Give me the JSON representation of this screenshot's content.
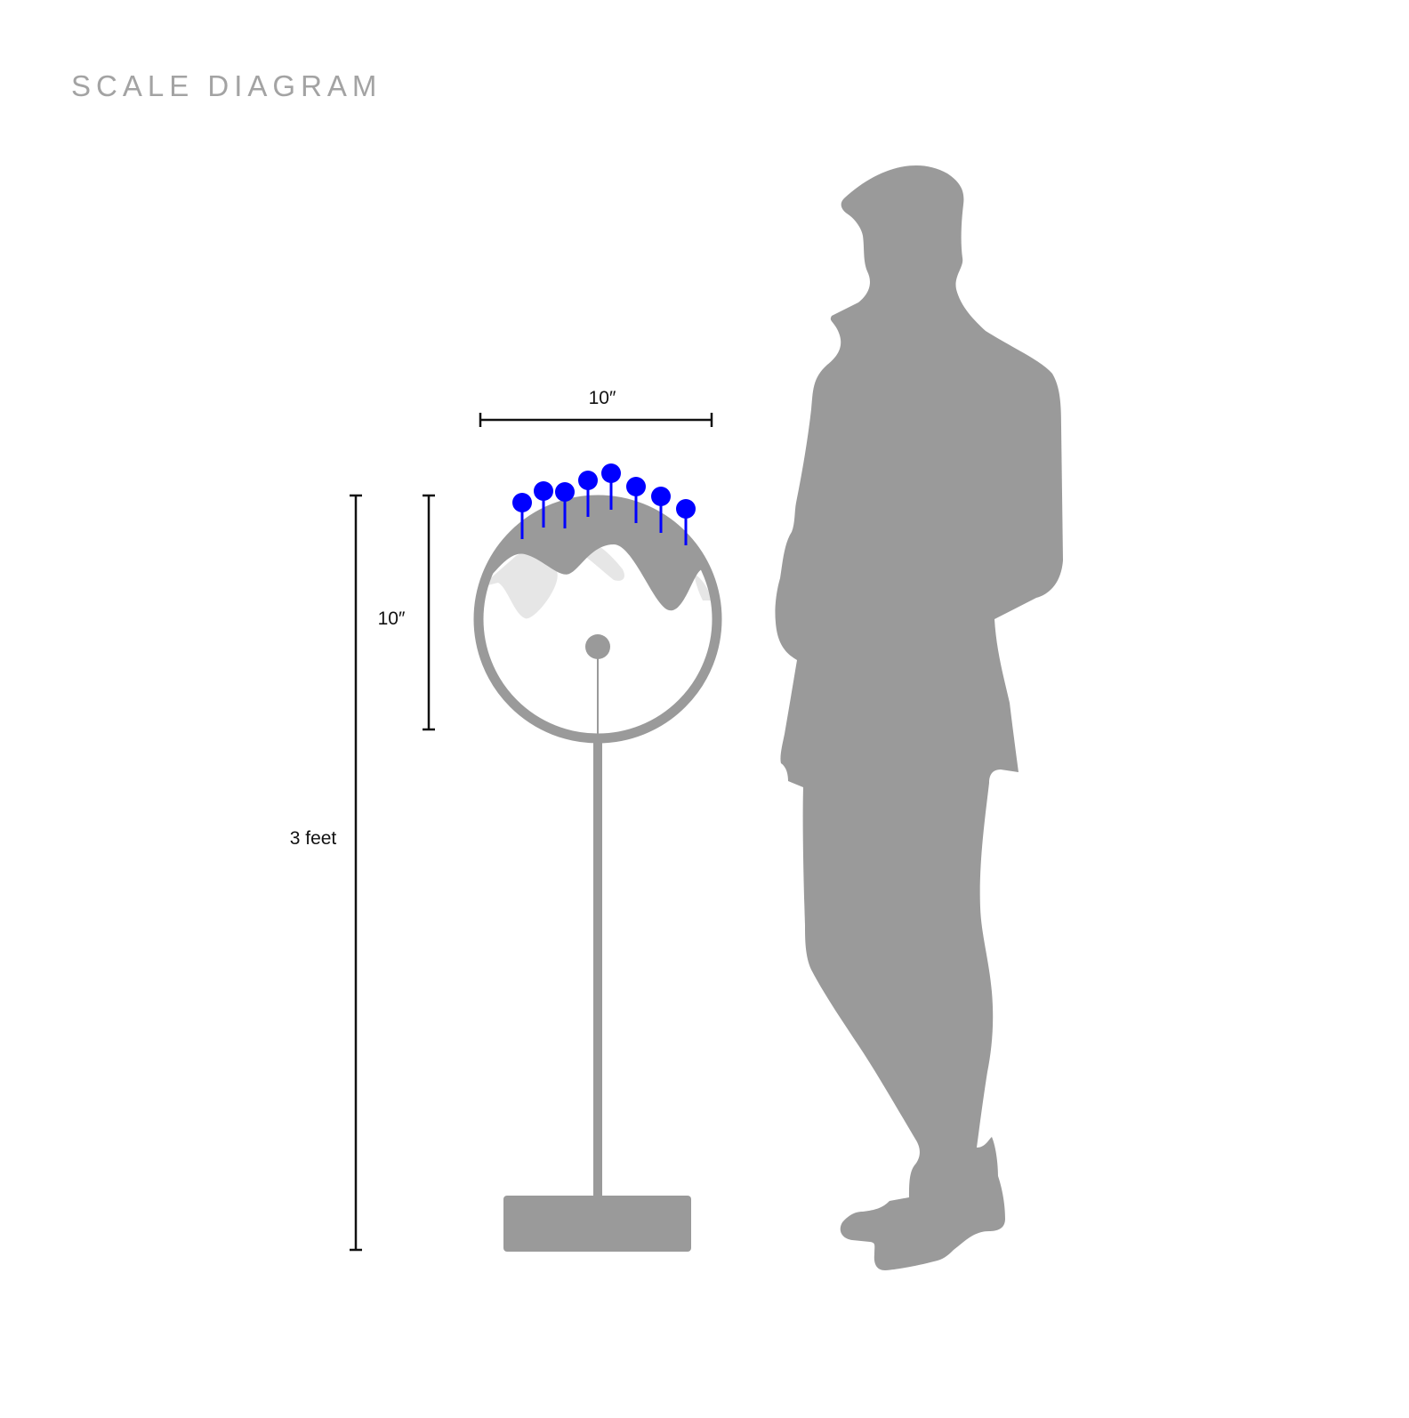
{
  "title": "SCALE DIAGRAM",
  "dimensions": {
    "width_label": "10″",
    "head_height_label": "10″",
    "total_height_label": "3 feet"
  },
  "colors": {
    "silhouette": "#9a9a9a",
    "light_wave": "#e6e6e6",
    "pins": "#0000ff",
    "dimension_lines": "#111111",
    "title": "#a3a3a3"
  },
  "pins": {
    "count": 8
  },
  "icons": {
    "person": "person-silhouette-icon",
    "sculpture": "sculpture-icon"
  }
}
